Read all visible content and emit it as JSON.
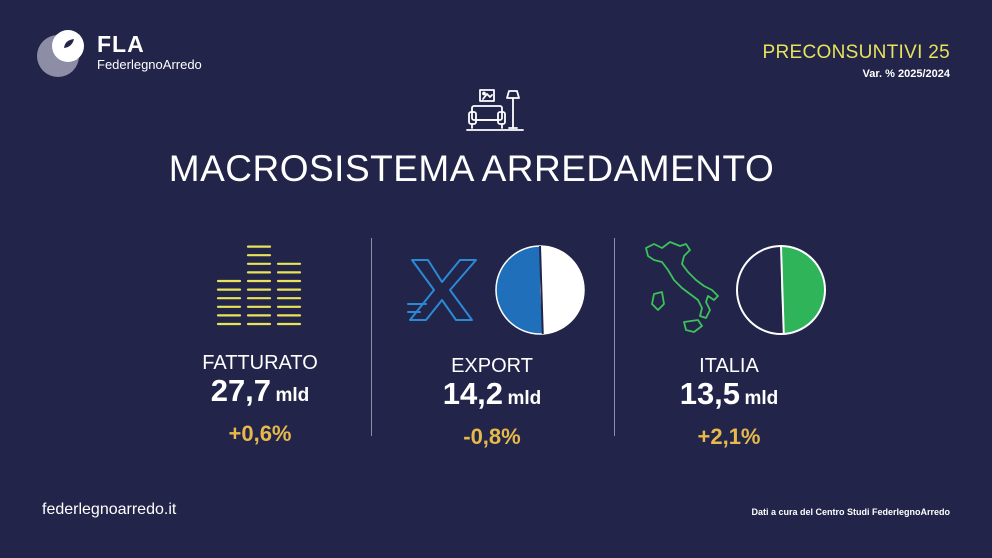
{
  "brand": {
    "title": "FLA",
    "subtitle": "FederlegnoArredo",
    "logo_icon": "fla-logo-icon"
  },
  "header": {
    "preconsuntivi": "PRECONSUNTIVI 25",
    "variation_label": "Var. % 2025/2024"
  },
  "main": {
    "icon": "sofa-lamp-icon",
    "title": "MACROSISTEMA ARREDAMENTO"
  },
  "stats": [
    {
      "icon": "bars-icon",
      "label": "FATTURATO",
      "value": "27,7",
      "unit": "mld",
      "change": "+0,6%"
    },
    {
      "icon": "export-x-icon",
      "label": "EXPORT",
      "value": "14,2",
      "unit": "mld",
      "change": "-0,8%",
      "pie_share": 0.51,
      "pie_color": "#1f6fba"
    },
    {
      "icon": "italy-map-icon",
      "label": "ITALIA",
      "value": "13,5",
      "unit": "mld",
      "change": "+2,1%",
      "pie_share": 0.49,
      "pie_color": "#2fb45a"
    }
  ],
  "footer": {
    "url": "federlegnoarredo.it",
    "credit": "Dati a cura del Centro Studi FederlegnoArredo"
  },
  "colors": {
    "background": "#23244a",
    "accent_yellow": "#e8e35a",
    "change_gold": "#e6b94a",
    "export_blue": "#1f6fba",
    "italia_green": "#2fb45a",
    "icon_green": "#3cc25a",
    "icon_blue": "#2a8ad6"
  }
}
